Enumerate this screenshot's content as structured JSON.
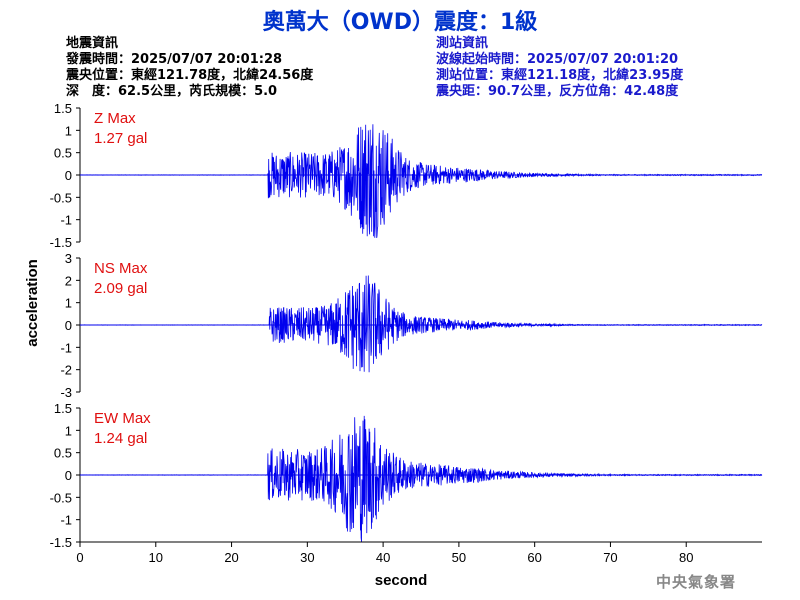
{
  "header": {
    "title": "奧萬大（OWD）震度：1級"
  },
  "earthquake_info": {
    "heading": "地震資訊",
    "origin_time": "發震時間：2025/07/07 20:01:28",
    "epicenter": "震央位置：東經121.78度，北緯24.56度",
    "depth_magnitude": "深　度：62.5公里，芮氏規模：5.0"
  },
  "station_info": {
    "heading": "測站資訊",
    "wave_start": "波線起始時間：2025/07/07 20:01:20",
    "location": "測站位置：東經121.18度，北緯23.95度",
    "distance": "震央距：90.7公里，反方位角：42.48度"
  },
  "footer": {
    "agency": "中央氣象署"
  },
  "colors": {
    "title": "#0033cc",
    "waveform": "#0000ee",
    "max_label": "#e01010",
    "station_info": "#1a1acc"
  },
  "chart_data": {
    "type": "line",
    "xlabel": "second",
    "ylabel": "acceleration",
    "xlim": [
      0,
      90
    ],
    "xticks": [
      0,
      10,
      20,
      30,
      40,
      50,
      60,
      70,
      80
    ],
    "panels": [
      {
        "component": "Z",
        "max_title": "Z Max",
        "max_value": "1.27 gal",
        "peak": 1.27,
        "ylim": [
          -1.5,
          1.5
        ],
        "yticks": [
          "1.5",
          "1",
          "0.5",
          "0",
          "-0.5",
          "-1",
          "-1.5"
        ],
        "onset_s": 24.8,
        "peak_time_s": 38.5,
        "coda_amplitude": 0.12
      },
      {
        "component": "NS",
        "max_title": "NS Max",
        "max_value": "2.09 gal",
        "peak": 2.09,
        "ylim": [
          -3,
          3
        ],
        "yticks": [
          "3",
          "2",
          "1",
          "0",
          "-1",
          "-2",
          "-3"
        ],
        "onset_s": 25.0,
        "peak_time_s": 37.5,
        "coda_amplitude": 0.15
      },
      {
        "component": "EW",
        "max_title": "EW Max",
        "max_value": "1.24 gal",
        "peak": 1.24,
        "ylim": [
          -1.5,
          1.5
        ],
        "yticks": [
          "1.5",
          "1",
          "0.5",
          "0",
          "-0.5",
          "-1",
          "-1.5"
        ],
        "onset_s": 24.8,
        "peak_time_s": 37.0,
        "coda_amplitude": 0.2
      }
    ]
  }
}
